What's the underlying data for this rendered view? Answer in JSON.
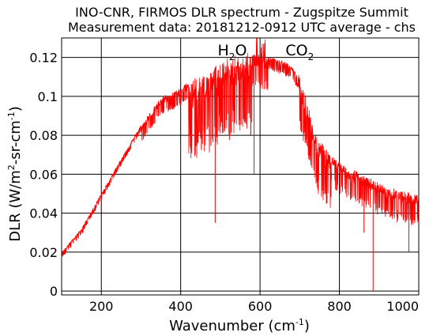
{
  "chart_data": {
    "type": "line",
    "title": "INO-CNR, FIRMOS DLR spectrum - Zugspitze Summit",
    "subtitle": "Measurement data: 20181212-0912 UTC average - chs",
    "xlabel": {
      "base": "Wavenumber (cm",
      "sup": "-1",
      "end": ")"
    },
    "ylabel": {
      "p1": "DLR (W/m",
      "s1": "2",
      "p2": "-sr-cm",
      "s2": "-1",
      "p3": ")"
    },
    "xlim": [
      100,
      1000
    ],
    "ylim": [
      -0.002,
      0.13
    ],
    "x_ticks": [
      200,
      400,
      600,
      800,
      1000
    ],
    "x_tick_labels": [
      "200",
      "400",
      "600",
      "800",
      "1000"
    ],
    "y_ticks": [
      0,
      0.02,
      0.04,
      0.06,
      0.08,
      0.1,
      0.12
    ],
    "y_tick_labels": [
      "0",
      "0.02",
      "0.04",
      "0.06",
      "0.08",
      "0.1",
      "0.12"
    ],
    "grid": true,
    "line_color": "#ff0000",
    "annotations": [
      {
        "name": "h2o",
        "base": "H",
        "sub": "2",
        "end": "O",
        "x": 530,
        "y": 0.121
      },
      {
        "name": "co2",
        "base": "CO",
        "sub": "2",
        "end": "",
        "x": 700,
        "y": 0.121
      }
    ],
    "series": [
      {
        "points": [
          [
            100,
            0.02
          ],
          [
            150,
            0.032
          ],
          [
            200,
            0.05
          ],
          [
            250,
            0.068
          ],
          [
            300,
            0.085
          ],
          [
            350,
            0.099
          ],
          [
            380,
            0.102
          ],
          [
            400,
            0.104
          ],
          [
            420,
            0.107
          ],
          [
            440,
            0.11
          ],
          [
            460,
            0.112
          ],
          [
            480,
            0.114
          ],
          [
            500,
            0.116
          ],
          [
            520,
            0.118
          ],
          [
            540,
            0.119
          ],
          [
            560,
            0.12
          ],
          [
            580,
            0.121
          ],
          [
            600,
            0.121
          ],
          [
            620,
            0.12
          ],
          [
            640,
            0.119
          ],
          [
            660,
            0.118
          ],
          [
            680,
            0.115
          ],
          [
            700,
            0.11
          ],
          [
            720,
            0.095
          ],
          [
            740,
            0.08
          ],
          [
            760,
            0.074
          ],
          [
            780,
            0.07
          ],
          [
            800,
            0.066
          ],
          [
            820,
            0.063
          ],
          [
            840,
            0.061
          ],
          [
            860,
            0.059
          ],
          [
            880,
            0.057
          ],
          [
            900,
            0.055
          ],
          [
            920,
            0.053
          ],
          [
            940,
            0.052
          ],
          [
            960,
            0.051
          ],
          [
            980,
            0.05
          ],
          [
            1000,
            0.049
          ]
        ]
      }
    ]
  }
}
